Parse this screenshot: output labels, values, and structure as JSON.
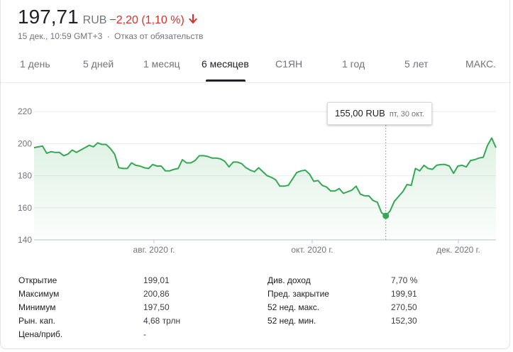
{
  "header": {
    "price": "197,71",
    "currency": "RUB",
    "change": "−2,20 (1,10 %)",
    "timestamp": "15 дек., 10:59 GMT+3",
    "separator": "·",
    "disclaimer": "Отказ от обязательств"
  },
  "tabs": [
    {
      "label": "1 день"
    },
    {
      "label": "5 дней"
    },
    {
      "label": "1 месяц"
    },
    {
      "label": "6 месяцев",
      "active": true
    },
    {
      "label": "С1ЯН"
    },
    {
      "label": "1 год"
    },
    {
      "label": "5 лет"
    },
    {
      "label": "МАКС."
    }
  ],
  "tooltip": {
    "value": "155,00 RUB",
    "date": "пт, 30 окт."
  },
  "colors": {
    "line": "#34a853",
    "negative": "#d93025"
  },
  "chart_data": {
    "type": "line",
    "y_ticks": [
      140,
      160,
      180,
      200,
      220
    ],
    "y_tick_labels": [
      "140",
      "160",
      "180",
      "200",
      "220"
    ],
    "ylim": [
      140,
      225
    ],
    "x_tick_labels": [
      "авг. 2020 г.",
      "окт. 2020 г.",
      "дек. 2020 г."
    ],
    "grid": true,
    "highlight_index": 83,
    "series": [
      {
        "values": [
          197.5,
          198,
          198.5,
          194,
          195,
          194.5,
          194.5,
          192.5,
          193.5,
          196,
          194.5,
          196,
          197.5,
          199,
          198,
          200.5,
          199.5,
          199.5,
          197,
          193.5,
          185,
          184.5,
          184.5,
          188,
          186.5,
          186,
          185,
          184.5,
          187,
          186,
          186,
          183,
          183,
          184,
          184.5,
          190,
          188,
          188,
          189.5,
          192.5,
          192.5,
          192,
          191,
          191,
          190.5,
          189,
          185.5,
          188.5,
          188.5,
          187.5,
          185,
          183.5,
          182.5,
          185,
          182.5,
          180,
          179,
          177.5,
          173.5,
          173.5,
          174,
          178,
          182,
          183,
          183.5,
          181,
          176.5,
          177,
          174,
          173,
          170.5,
          170.5,
          172,
          169,
          170,
          171,
          173.5,
          168.5,
          167.5,
          167.5,
          164.5,
          163.5,
          157,
          155,
          158,
          164,
          167,
          170,
          174.5,
          174,
          184.5,
          183,
          186.5,
          184.5,
          184,
          186.5,
          187,
          187,
          186,
          181.5,
          186,
          186.5,
          185.5,
          189.5,
          190,
          191,
          191.5,
          199,
          203.5,
          197.5
        ]
      }
    ]
  },
  "stats": {
    "left": [
      {
        "label": "Открытие",
        "value": "199,01"
      },
      {
        "label": "Максимум",
        "value": "200,86"
      },
      {
        "label": "Минимум",
        "value": "197,50"
      },
      {
        "label": "Рын. кап.",
        "value": "4,68 трлн"
      },
      {
        "label": "Цена/приб.",
        "value": "-"
      }
    ],
    "right": [
      {
        "label": "Див. доход",
        "value": "7,70 %"
      },
      {
        "label": "Пред. закрытие",
        "value": "199,91"
      },
      {
        "label": "52 нед. макс.",
        "value": "270,50"
      },
      {
        "label": "52 нед. мин.",
        "value": "152,30"
      }
    ]
  }
}
